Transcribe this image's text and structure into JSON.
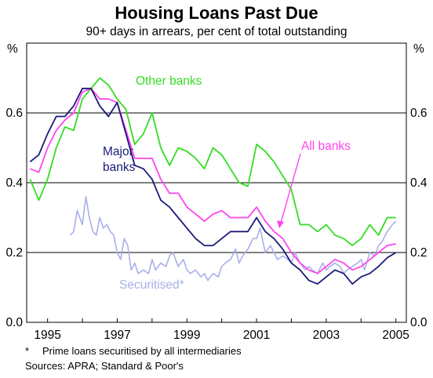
{
  "chart_data": {
    "type": "line",
    "title": "Housing Loans Past Due",
    "subtitle": "90+ days in arrears, per cent of total outstanding",
    "y_unit_left": "%",
    "y_unit_right": "%",
    "xlim": [
      1994.4,
      2005.3
    ],
    "ylim": [
      0,
      0.8
    ],
    "x_ticks": [
      "1995",
      "1997",
      "1999",
      "2001",
      "2003",
      "2005"
    ],
    "y_ticks": [
      "0.0",
      "0.2",
      "0.4",
      "0.6"
    ],
    "grid": "horizontal",
    "series": [
      {
        "name": "Other banks",
        "color": "#33dd22",
        "x": [
          1994.5,
          1994.75,
          1995.0,
          1995.25,
          1995.5,
          1995.75,
          1996.0,
          1996.25,
          1996.5,
          1996.75,
          1997.0,
          1997.25,
          1997.5,
          1997.75,
          1998.0,
          1998.25,
          1998.5,
          1998.75,
          1999.0,
          1999.25,
          1999.5,
          1999.75,
          2000.0,
          2000.25,
          2000.5,
          2000.75,
          2001.0,
          2001.25,
          2001.5,
          2001.75,
          2002.0,
          2002.25,
          2002.5,
          2002.75,
          2003.0,
          2003.25,
          2003.5,
          2003.75,
          2004.0,
          2004.25,
          2004.5,
          2004.75,
          2005.0
        ],
        "values": [
          0.41,
          0.35,
          0.41,
          0.5,
          0.56,
          0.55,
          0.64,
          0.67,
          0.7,
          0.68,
          0.64,
          0.61,
          0.51,
          0.54,
          0.6,
          0.5,
          0.45,
          0.5,
          0.49,
          0.47,
          0.44,
          0.5,
          0.48,
          0.44,
          0.4,
          0.39,
          0.51,
          0.49,
          0.46,
          0.42,
          0.38,
          0.28,
          0.28,
          0.26,
          0.28,
          0.25,
          0.24,
          0.22,
          0.24,
          0.28,
          0.25,
          0.3,
          0.3
        ]
      },
      {
        "name": "All banks",
        "color": "#ff44ee",
        "x": [
          1994.5,
          1994.75,
          1995.0,
          1995.25,
          1995.5,
          1995.75,
          1996.0,
          1996.25,
          1996.5,
          1996.75,
          1997.0,
          1997.25,
          1997.5,
          1997.75,
          1998.0,
          1998.25,
          1998.5,
          1998.75,
          1999.0,
          1999.25,
          1999.5,
          1999.75,
          2000.0,
          2000.25,
          2000.5,
          2000.75,
          2001.0,
          2001.25,
          2001.5,
          2001.75,
          2002.0,
          2002.25,
          2002.5,
          2002.75,
          2003.0,
          2003.25,
          2003.5,
          2003.75,
          2004.0,
          2004.25,
          2004.5,
          2004.75,
          2005.0
        ],
        "values": [
          0.44,
          0.43,
          0.5,
          0.55,
          0.58,
          0.6,
          0.66,
          0.67,
          0.64,
          0.64,
          0.63,
          0.55,
          0.47,
          0.47,
          0.47,
          0.41,
          0.37,
          0.37,
          0.33,
          0.31,
          0.29,
          0.31,
          0.32,
          0.3,
          0.3,
          0.3,
          0.33,
          0.29,
          0.26,
          0.24,
          0.2,
          0.17,
          0.15,
          0.14,
          0.16,
          0.18,
          0.17,
          0.15,
          0.16,
          0.18,
          0.2,
          0.22,
          0.225
        ]
      },
      {
        "name": "Major banks",
        "color": "#1a1a7a",
        "x": [
          1994.5,
          1994.75,
          1995.0,
          1995.25,
          1995.5,
          1995.75,
          1996.0,
          1996.25,
          1996.5,
          1996.75,
          1997.0,
          1997.25,
          1997.5,
          1997.75,
          1998.0,
          1998.25,
          1998.5,
          1998.75,
          1999.0,
          1999.25,
          1999.5,
          1999.75,
          2000.0,
          2000.25,
          2000.5,
          2000.75,
          2001.0,
          2001.25,
          2001.5,
          2001.75,
          2002.0,
          2002.25,
          2002.5,
          2002.75,
          2003.0,
          2003.25,
          2003.5,
          2003.75,
          2004.0,
          2004.25,
          2004.5,
          2004.75,
          2005.0
        ],
        "values": [
          0.46,
          0.48,
          0.54,
          0.59,
          0.59,
          0.62,
          0.67,
          0.67,
          0.62,
          0.59,
          0.63,
          0.54,
          0.45,
          0.44,
          0.41,
          0.35,
          0.33,
          0.3,
          0.27,
          0.24,
          0.22,
          0.22,
          0.24,
          0.26,
          0.26,
          0.26,
          0.3,
          0.26,
          0.24,
          0.21,
          0.17,
          0.15,
          0.12,
          0.11,
          0.13,
          0.15,
          0.14,
          0.11,
          0.13,
          0.14,
          0.16,
          0.185,
          0.2
        ]
      },
      {
        "name": "Securitised*",
        "color": "#a8b0e8",
        "x": [
          1995.65,
          1995.75,
          1995.85,
          1996.0,
          1996.1,
          1996.2,
          1996.3,
          1996.4,
          1996.5,
          1996.6,
          1996.7,
          1996.8,
          1996.9,
          1997.0,
          1997.1,
          1997.2,
          1997.3,
          1997.4,
          1997.5,
          1997.6,
          1997.75,
          1997.9,
          1998.0,
          1998.1,
          1998.25,
          1998.4,
          1998.5,
          1998.6,
          1998.75,
          1998.9,
          1999.0,
          1999.1,
          1999.25,
          1999.4,
          1999.5,
          1999.6,
          1999.75,
          1999.9,
          2000.0,
          2000.1,
          2000.25,
          2000.4,
          2000.5,
          2000.6,
          2000.75,
          2000.9,
          2001.0,
          2001.1,
          2001.25,
          2001.4,
          2001.5,
          2001.6,
          2001.75,
          2001.9,
          2002.0,
          2002.1,
          2002.25,
          2002.4,
          2002.5,
          2002.6,
          2002.75,
          2002.9,
          2003.0,
          2003.1,
          2003.25,
          2003.4,
          2003.5,
          2003.6,
          2003.75,
          2003.9,
          2004.0,
          2004.1,
          2004.25,
          2004.4,
          2004.5,
          2004.6,
          2004.75,
          2004.9,
          2005.0
        ],
        "values": [
          0.25,
          0.26,
          0.32,
          0.28,
          0.36,
          0.3,
          0.26,
          0.25,
          0.3,
          0.27,
          0.28,
          0.26,
          0.25,
          0.2,
          0.18,
          0.24,
          0.22,
          0.15,
          0.17,
          0.14,
          0.15,
          0.14,
          0.18,
          0.15,
          0.17,
          0.16,
          0.19,
          0.2,
          0.16,
          0.18,
          0.15,
          0.14,
          0.15,
          0.13,
          0.14,
          0.12,
          0.14,
          0.13,
          0.16,
          0.17,
          0.18,
          0.21,
          0.17,
          0.19,
          0.21,
          0.24,
          0.24,
          0.27,
          0.2,
          0.22,
          0.2,
          0.18,
          0.19,
          0.18,
          0.17,
          0.2,
          0.17,
          0.15,
          0.16,
          0.15,
          0.14,
          0.17,
          0.15,
          0.16,
          0.17,
          0.16,
          0.14,
          0.15,
          0.16,
          0.17,
          0.18,
          0.15,
          0.2,
          0.19,
          0.22,
          0.23,
          0.26,
          0.28,
          0.29
        ]
      }
    ],
    "annotations": [
      "Other banks",
      "Major\nbanks",
      "All banks",
      "Securitised*"
    ]
  },
  "footnote": {
    "star": "*",
    "text": "Prime loans securitised by all intermediaries"
  },
  "sources": "Sources: APRA; Standard & Poor's"
}
